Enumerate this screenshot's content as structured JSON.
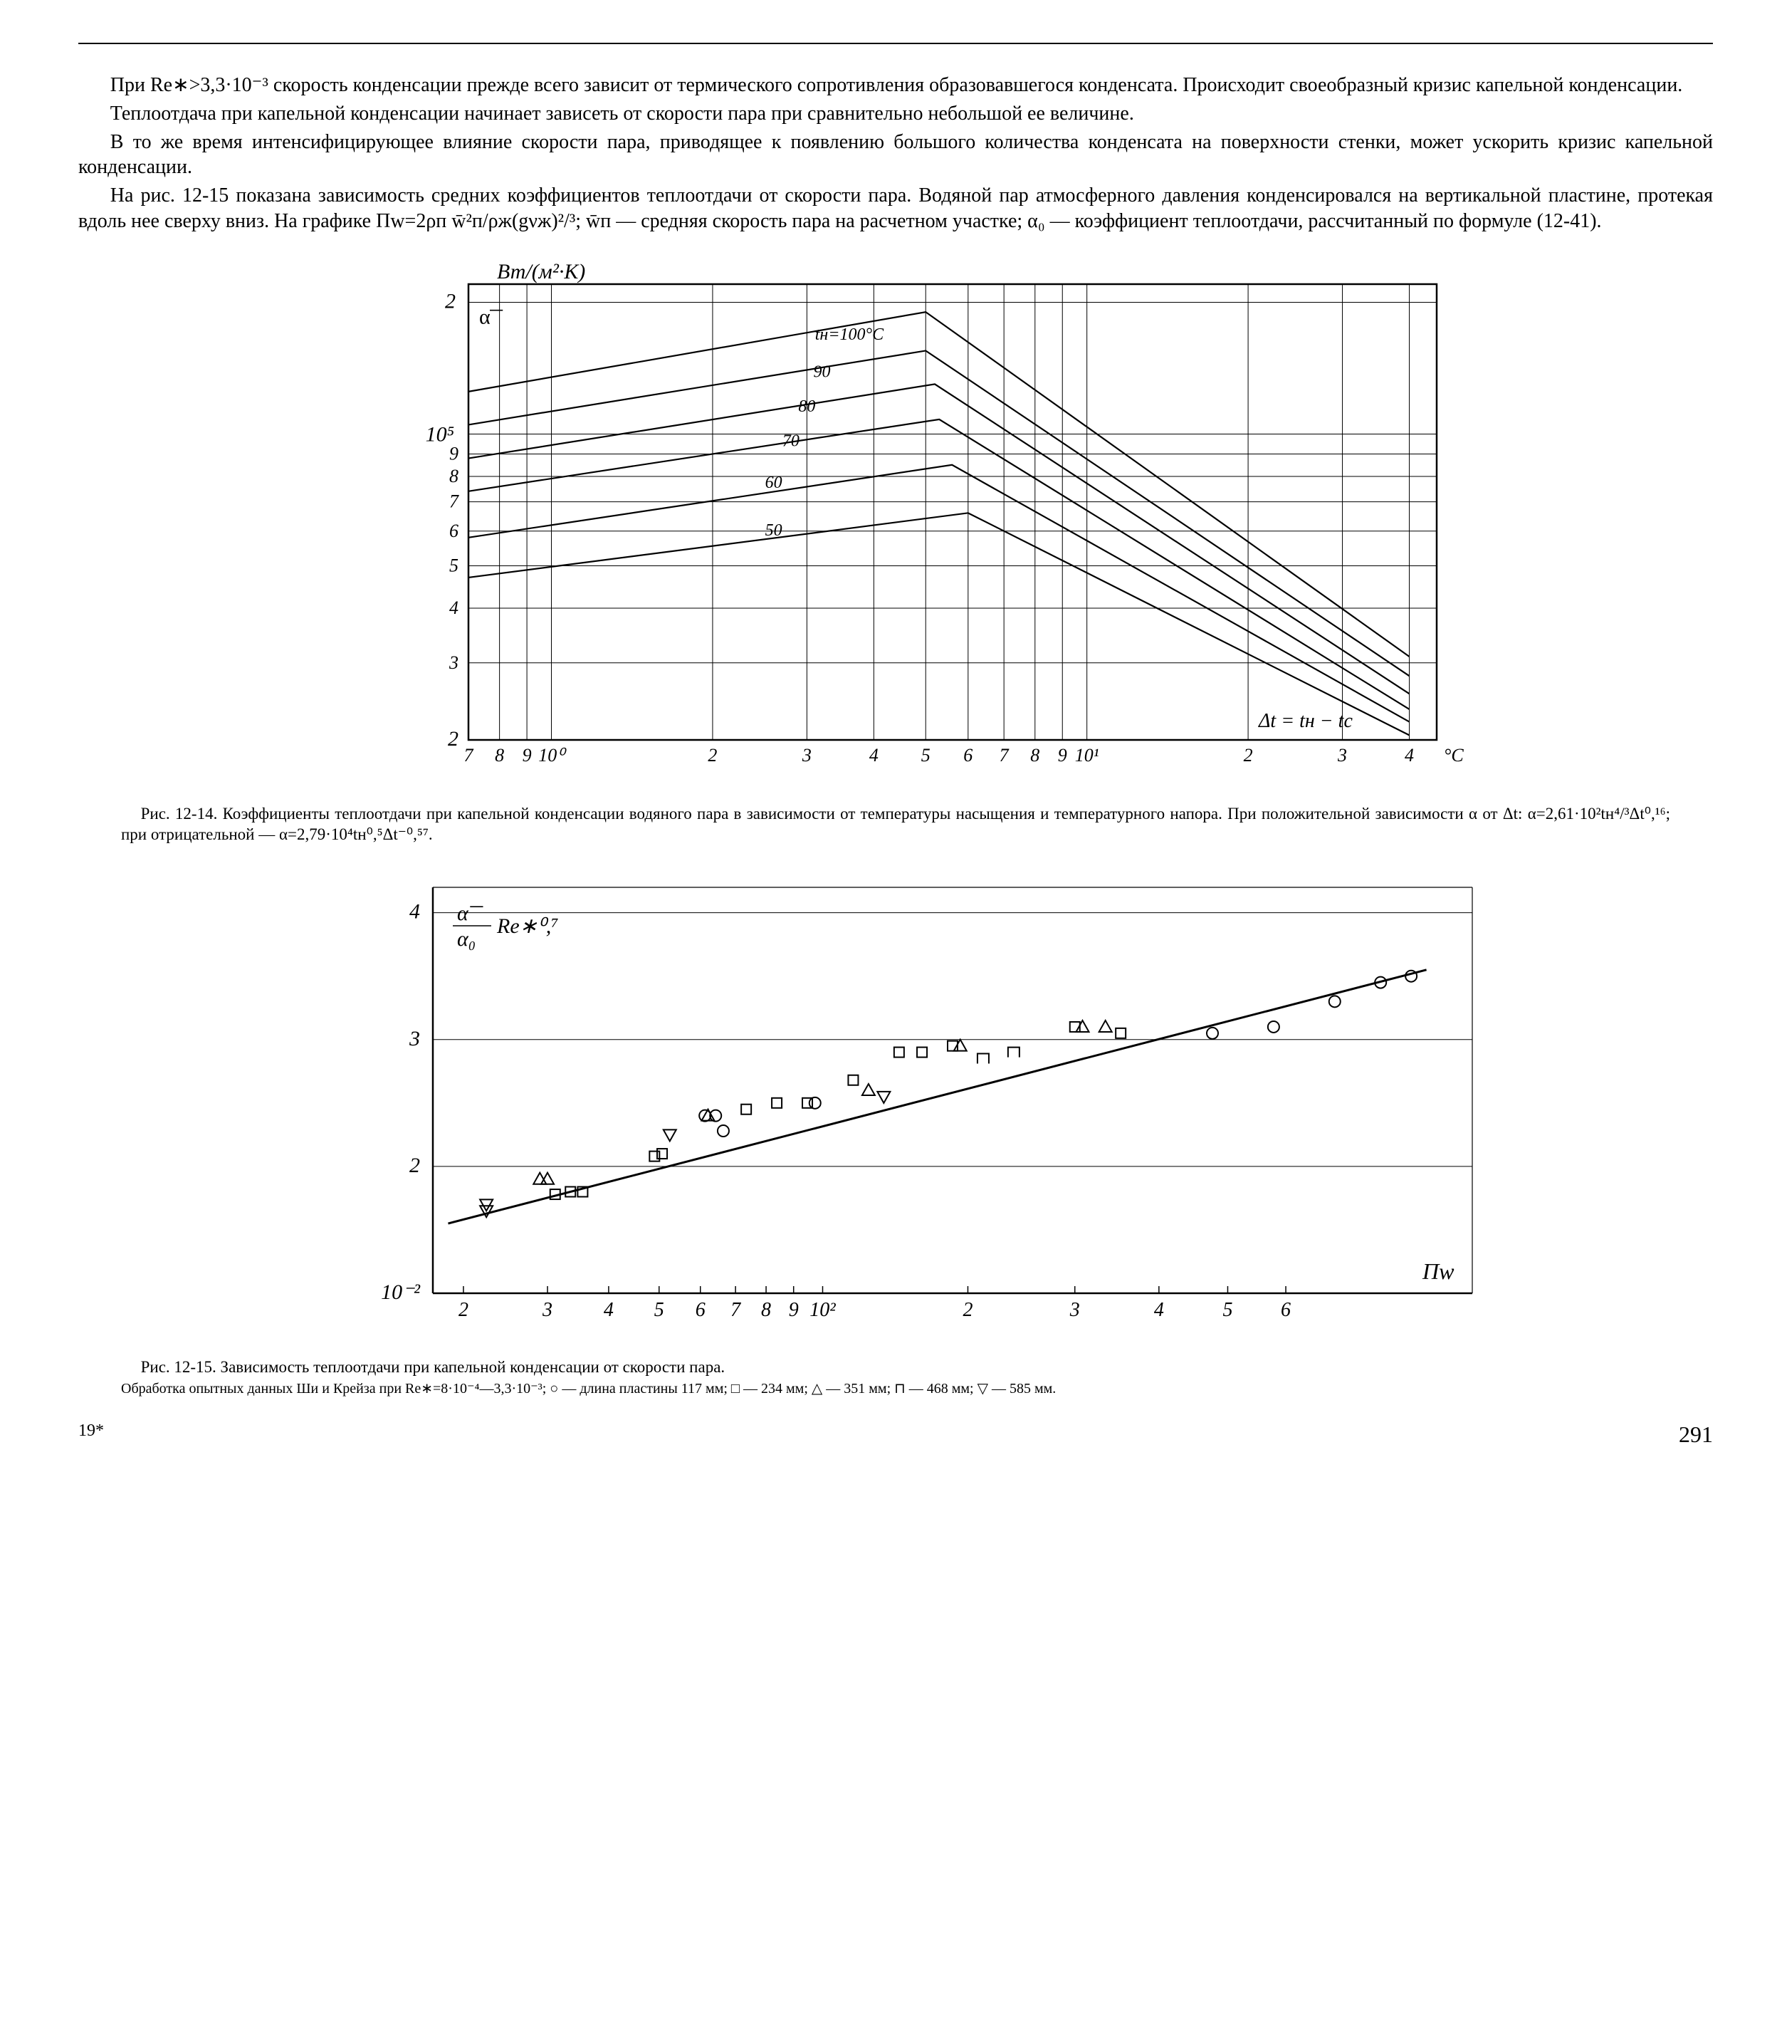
{
  "body": {
    "p1": "При Re∗>3,3·10⁻³ скорость конденсации прежде всего зависит от термического сопротивления образовавшегося конденсата. Происходит своеобразный кризис капельной конденсации.",
    "p2": "Теплоотдача при капельной конденсации начинает зависеть от скорости пара при сравнительно небольшой ее величине.",
    "p3": "В то же время интенсифицирующее влияние скорости пара, приводящее к появлению большого количества конденсата на поверхности стенки, может ускорить кризис капельной конденсации.",
    "p4": "На рис. 12-15 показана зависимость средних коэффициентов теплоотдачи от скорости пара. Водяной пар атмосферного давления конденсировался на вертикальной пластине, протекая вдоль нее сверху вниз. На графике Πw=2ρп w̄²п/ρж(gνж)²/³; w̄п — средняя скорость пара на расчетном участке; α₀ — коэффициент теплоотдачи, рассчитанный по формуле (12-41)."
  },
  "fig14": {
    "ylabel": "Вт/(м²·К)",
    "ylabels_top": "α͞",
    "y_ticks_major": [
      "2",
      "10⁵",
      "2"
    ],
    "y_ticks_minor_upper": [
      "9",
      "8",
      "7",
      "6",
      "5",
      "4",
      "3"
    ],
    "x_ticks": [
      "7",
      "8",
      "9",
      "10⁰",
      "2",
      "3",
      "4",
      "5",
      "6",
      "7",
      "8",
      "9",
      "10¹",
      "2",
      "3",
      "4"
    ],
    "x_unit": "°C",
    "annot_dt": "Δt = tн − tс",
    "line_label_head": "tн=100°C",
    "line_labels": [
      "90",
      "80",
      "70",
      "60",
      "50"
    ],
    "caption": "Рис. 12-14. Коэффициенты теплоотдачи при капельной конденсации водяного пара в зависимости от температуры насыщения и температурного напора. При положительной зависимости α от Δt: α=2,61·10²tн⁴/³Δt⁰,¹⁶; при отрицательной — α=2,79·10⁴tн⁰,⁵Δt⁻⁰,⁵⁷.",
    "colors": {
      "axis": "#000000",
      "grid": "#000000",
      "line": "#000000"
    }
  },
  "fig15": {
    "ylabel_top": "α͞",
    "ylabel_div": "α₀",
    "ylabel_exp": "Re∗⁰,⁷",
    "y_ticks": [
      "4",
      "3",
      "2",
      "10⁻²"
    ],
    "x_ticks": [
      "2",
      "3",
      "4",
      "5",
      "6",
      "7",
      "8",
      "9",
      "10²",
      "2",
      "3",
      "4",
      "5",
      "6"
    ],
    "x_label": "Πw",
    "markers": {
      "circle": [
        [
          4.2,
          3.05
        ],
        [
          4.6,
          3.1
        ],
        [
          5.0,
          3.3
        ],
        [
          5.3,
          3.45
        ],
        [
          5.5,
          3.5
        ],
        [
          0.88,
          2.4
        ],
        [
          0.95,
          2.4
        ],
        [
          1.6,
          2.5
        ],
        [
          1.0,
          2.28
        ]
      ],
      "square": [
        [
          -0.1,
          1.78
        ],
        [
          0.0,
          1.8
        ],
        [
          0.08,
          1.8
        ],
        [
          0.55,
          2.08
        ],
        [
          0.6,
          2.1
        ],
        [
          1.15,
          2.45
        ],
        [
          1.35,
          2.5
        ],
        [
          1.55,
          2.5
        ],
        [
          1.85,
          2.68
        ],
        [
          2.15,
          2.9
        ],
        [
          2.3,
          2.9
        ],
        [
          2.5,
          2.95
        ],
        [
          3.3,
          3.1
        ],
        [
          3.6,
          3.05
        ]
      ],
      "triUp": [
        [
          -0.2,
          1.9
        ],
        [
          -0.15,
          1.9
        ],
        [
          0.9,
          2.4
        ],
        [
          1.95,
          2.6
        ],
        [
          2.55,
          2.95
        ],
        [
          3.35,
          3.1
        ],
        [
          3.5,
          3.1
        ]
      ],
      "triDown": [
        [
          -0.55,
          1.7
        ],
        [
          -0.55,
          1.65
        ],
        [
          0.65,
          2.25
        ],
        [
          2.05,
          2.55
        ]
      ],
      "cap": [
        [
          2.7,
          2.85
        ],
        [
          2.9,
          2.9
        ]
      ]
    },
    "fit_line": {
      "x1": -0.8,
      "y1": 1.55,
      "x2": 5.6,
      "y2": 3.55
    },
    "caption_main": "Рис. 12-15. Зависимость теплоотдачи при капельной конденсации от скорости пара.",
    "caption_sub": "Обработка опытных данных Ши и Крейза при Re∗=8·10⁻⁴—3,3·10⁻³; ○ — длина пластины 117 мм; □ — 234 мм; △ — 351 мм; ⊓ — 468 мм; ▽ — 585 мм.",
    "colors": {
      "axis": "#000000",
      "fit": "#000000",
      "marker": "#000000"
    }
  },
  "footer": {
    "sig": "19*",
    "page": "291"
  }
}
